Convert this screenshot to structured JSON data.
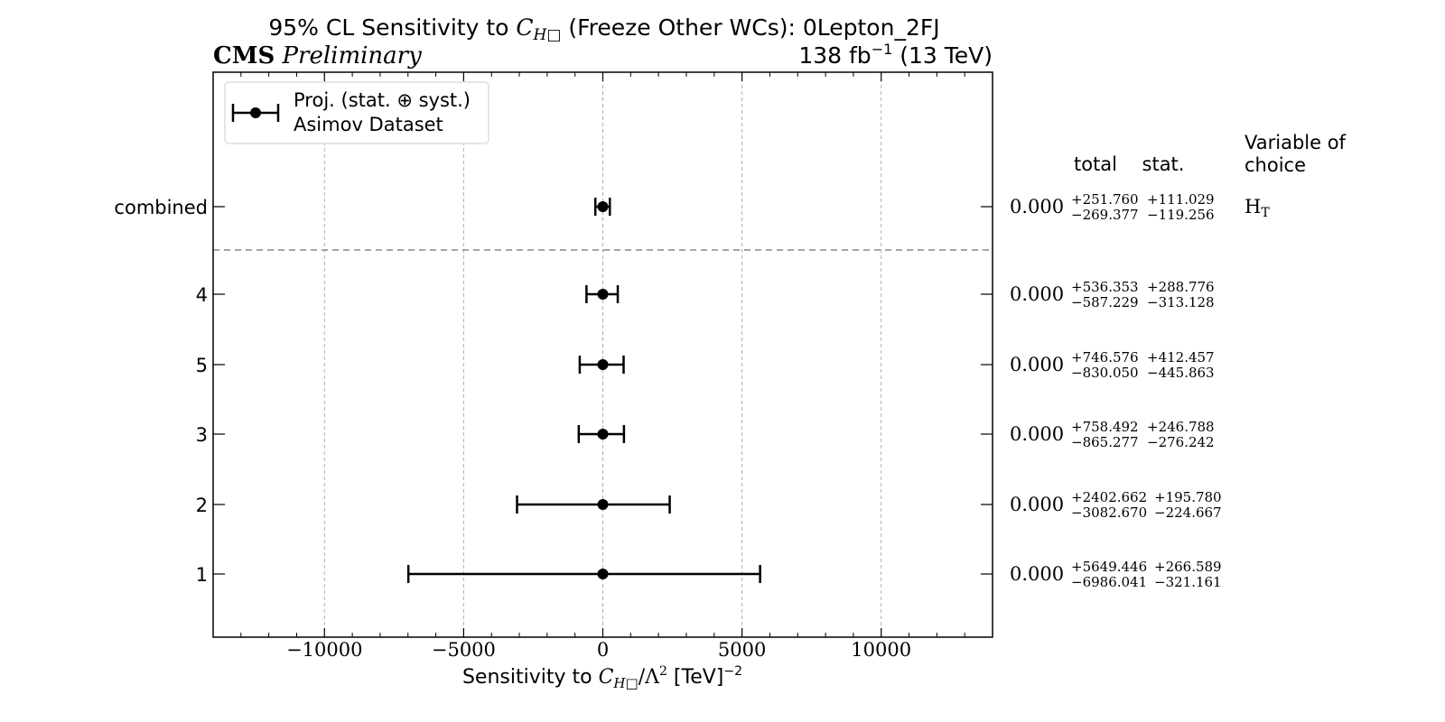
{
  "chart_data": {
    "type": "scatter",
    "title_prefix": "95% CL Sensitivity to ",
    "title_symbol": "C",
    "title_symbol_sub": "H□",
    "title_suffix": " (Freeze Other WCs): 0Lepton_2FJ",
    "experiment": "CMS",
    "status": "Preliminary",
    "lumi_prefix": "138 fb",
    "lumi_exp": "−1",
    "lumi_suffix": " (13 TeV)",
    "xlabel_prefix": "Sensitivity to ",
    "xlabel_symbol": "C",
    "xlabel_symbol_sub": "H□",
    "xlabel_mid": "/Λ",
    "xlabel_mid_exp": "2",
    "xlabel_unit": " [TeV]",
    "xlabel_unit_exp": "−2",
    "xlim": [
      -14000,
      14000
    ],
    "xticks": [
      -10000,
      -5000,
      0,
      5000,
      10000
    ],
    "xtick_labels": [
      "−10000",
      "−5000",
      "0",
      "5000",
      "10000"
    ],
    "grid": "vertical dashed",
    "legend_position": "top-left",
    "legend_line1": "Proj. (stat. ⊕ syst.)",
    "legend_line2": "Asimov Dataset",
    "column_headers": {
      "total": "total",
      "stat": "stat.",
      "variable_line1": "Variable of",
      "variable_line2": "choice"
    },
    "points": [
      {
        "label": "combined",
        "value": 0,
        "value_text": "0.000",
        "total_plus": 251.76,
        "total_minus": 269.377,
        "total_plus_text": "+251.760",
        "total_minus_text": "−269.377",
        "stat_plus_text": "+111.029",
        "stat_minus_text": "−119.256",
        "variable": "H",
        "variable_sub": "T"
      },
      {
        "label": "4",
        "value": 0,
        "value_text": "0.000",
        "total_plus": 536.353,
        "total_minus": 587.229,
        "total_plus_text": "+536.353",
        "total_minus_text": "−587.229",
        "stat_plus_text": "+288.776",
        "stat_minus_text": "−313.128"
      },
      {
        "label": "5",
        "value": 0,
        "value_text": "0.000",
        "total_plus": 746.576,
        "total_minus": 830.05,
        "total_plus_text": "+746.576",
        "total_minus_text": "−830.050",
        "stat_plus_text": "+412.457",
        "stat_minus_text": "−445.863"
      },
      {
        "label": "3",
        "value": 0,
        "value_text": "0.000",
        "total_plus": 758.492,
        "total_minus": 865.277,
        "total_plus_text": "+758.492",
        "total_minus_text": "−865.277",
        "stat_plus_text": "+246.788",
        "stat_minus_text": "−276.242"
      },
      {
        "label": "2",
        "value": 0,
        "value_text": "0.000",
        "total_plus": 2402.662,
        "total_minus": 3082.67,
        "total_plus_text": "+2402.662",
        "total_minus_text": "−3082.670",
        "stat_plus_text": "+195.780",
        "stat_minus_text": "−224.667"
      },
      {
        "label": "1",
        "value": 0,
        "value_text": "0.000",
        "total_plus": 5649.446,
        "total_minus": 6986.041,
        "total_plus_text": "+5649.446",
        "total_minus_text": "−6986.041",
        "stat_plus_text": "+266.589",
        "stat_minus_text": "−321.161"
      }
    ]
  }
}
